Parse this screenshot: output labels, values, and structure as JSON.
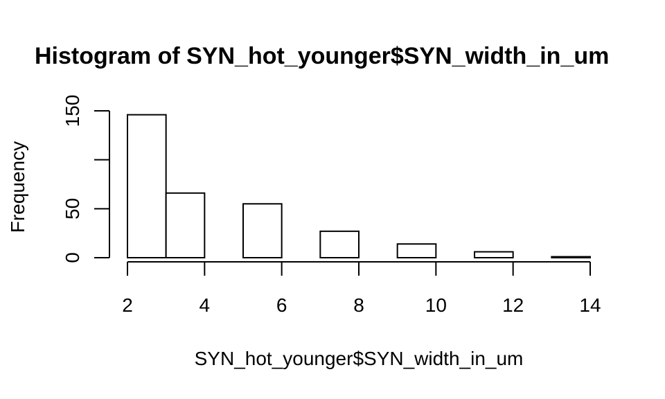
{
  "chart_data": {
    "type": "bar",
    "title": "Histogram of SYN_hot_younger$SYN_width_in_um",
    "xlabel": "SYN_hot_younger$SYN_width_in_um",
    "ylabel": "Frequency",
    "bins": [
      {
        "start": 2,
        "end": 3,
        "count": 146
      },
      {
        "start": 3,
        "end": 4,
        "count": 66
      },
      {
        "start": 4,
        "end": 5,
        "count": 0
      },
      {
        "start": 5,
        "end": 6,
        "count": 55
      },
      {
        "start": 6,
        "end": 7,
        "count": 0
      },
      {
        "start": 7,
        "end": 8,
        "count": 27
      },
      {
        "start": 8,
        "end": 9,
        "count": 0
      },
      {
        "start": 9,
        "end": 10,
        "count": 14
      },
      {
        "start": 10,
        "end": 11,
        "count": 0
      },
      {
        "start": 11,
        "end": 12,
        "count": 6
      },
      {
        "start": 12,
        "end": 13,
        "count": 0
      },
      {
        "start": 13,
        "end": 14,
        "count": 1
      }
    ],
    "xlim": [
      2,
      14
    ],
    "ylim": [
      0,
      150
    ],
    "x_ticks": [
      "2",
      "4",
      "6",
      "8",
      "10",
      "12",
      "14"
    ],
    "y_ticks": [
      "0",
      "50",
      "100",
      "150"
    ],
    "y_tick_labels": [
      "0",
      "50",
      "",
      "150"
    ],
    "grid": false,
    "bar_fill": "#ffffff",
    "bar_stroke": "#000000"
  }
}
